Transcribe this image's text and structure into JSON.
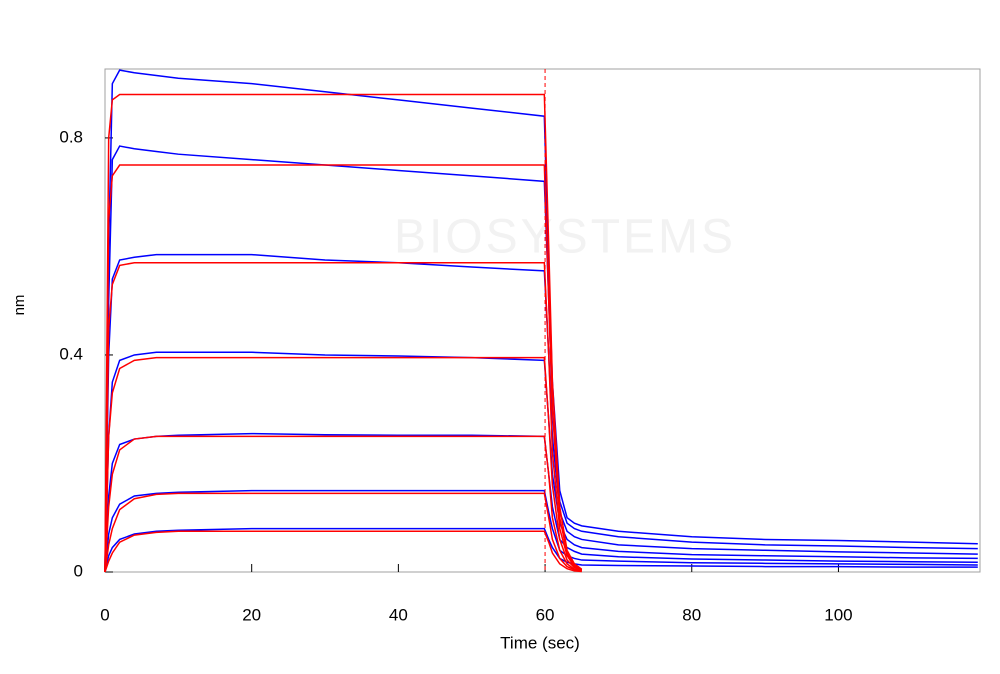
{
  "chart_data": {
    "type": "line",
    "xlabel": "Time (sec)",
    "ylabel": "nm",
    "watermark": "BIOSYSTEMS",
    "x": [
      0,
      0.5,
      1,
      2,
      4,
      7,
      10,
      20,
      30,
      40,
      50,
      59.9,
      60.5,
      61,
      62,
      63,
      64,
      65,
      70,
      80,
      90,
      100,
      110,
      119
    ],
    "xlim": [
      0,
      119.3
    ],
    "xticks": [
      0,
      20,
      40,
      60,
      80,
      100
    ],
    "ylim": [
      0,
      0.927
    ],
    "yticks": [
      0,
      0.4,
      0.8
    ],
    "vline_x": 60,
    "vline_color": "#ff0000",
    "series": [
      {
        "color": "#0000ff",
        "values": [
          0,
          0.6,
          0.9,
          0.925,
          0.92,
          0.915,
          0.91,
          0.9,
          0.885,
          0.87,
          0.855,
          0.84,
          0.55,
          0.35,
          0.15,
          0.1,
          0.09,
          0.085,
          0.075,
          0.065,
          0.06,
          0.058,
          0.055,
          0.052
        ]
      },
      {
        "color": "#0000ff",
        "values": [
          0,
          0.5,
          0.76,
          0.785,
          0.78,
          0.775,
          0.77,
          0.76,
          0.75,
          0.74,
          0.73,
          0.72,
          0.5,
          0.3,
          0.13,
          0.09,
          0.08,
          0.075,
          0.065,
          0.055,
          0.05,
          0.048,
          0.045,
          0.043
        ]
      },
      {
        "color": "#0000ff",
        "values": [
          0,
          0.4,
          0.54,
          0.575,
          0.58,
          0.585,
          0.585,
          0.585,
          0.575,
          0.57,
          0.562,
          0.555,
          0.4,
          0.25,
          0.11,
          0.075,
          0.065,
          0.06,
          0.05,
          0.043,
          0.04,
          0.037,
          0.035,
          0.033
        ]
      },
      {
        "color": "#0000ff",
        "values": [
          0,
          0.25,
          0.35,
          0.39,
          0.4,
          0.405,
          0.405,
          0.405,
          0.4,
          0.398,
          0.395,
          0.39,
          0.28,
          0.18,
          0.09,
          0.06,
          0.05,
          0.045,
          0.038,
          0.032,
          0.03,
          0.028,
          0.026,
          0.025
        ]
      },
      {
        "color": "#0000ff",
        "values": [
          0,
          0.14,
          0.2,
          0.235,
          0.245,
          0.25,
          0.252,
          0.255,
          0.253,
          0.252,
          0.252,
          0.25,
          0.18,
          0.12,
          0.06,
          0.045,
          0.038,
          0.033,
          0.028,
          0.024,
          0.022,
          0.02,
          0.019,
          0.018
        ]
      },
      {
        "color": "#0000ff",
        "values": [
          0,
          0.07,
          0.1,
          0.125,
          0.14,
          0.145,
          0.147,
          0.15,
          0.15,
          0.15,
          0.15,
          0.15,
          0.11,
          0.08,
          0.04,
          0.03,
          0.025,
          0.022,
          0.02,
          0.017,
          0.016,
          0.015,
          0.014,
          0.013
        ]
      },
      {
        "color": "#0000ff",
        "values": [
          0,
          0.03,
          0.045,
          0.06,
          0.07,
          0.075,
          0.077,
          0.08,
          0.08,
          0.08,
          0.08,
          0.08,
          0.06,
          0.045,
          0.025,
          0.018,
          0.015,
          0.013,
          0.012,
          0.011,
          0.01,
          0.01,
          0.009,
          0.009
        ]
      },
      {
        "color": "#ff0000",
        "values": [
          0,
          0.8,
          0.87,
          0.88,
          0.88,
          0.88,
          0.88,
          0.88,
          0.88,
          0.88,
          0.88,
          0.88,
          0.6,
          0.35,
          0.12,
          0.04,
          0.015,
          0.005,
          null,
          null,
          null,
          null,
          null,
          null
        ]
      },
      {
        "color": "#ff0000",
        "values": [
          0,
          0.65,
          0.73,
          0.75,
          0.75,
          0.75,
          0.75,
          0.75,
          0.75,
          0.75,
          0.75,
          0.75,
          0.5,
          0.3,
          0.1,
          0.035,
          0.012,
          0.004,
          null,
          null,
          null,
          null,
          null,
          null
        ]
      },
      {
        "color": "#ff0000",
        "values": [
          0,
          0.45,
          0.53,
          0.565,
          0.57,
          0.57,
          0.57,
          0.57,
          0.57,
          0.57,
          0.57,
          0.57,
          0.4,
          0.22,
          0.08,
          0.03,
          0.01,
          0.003,
          null,
          null,
          null,
          null,
          null,
          null
        ]
      },
      {
        "color": "#ff0000",
        "values": [
          0,
          0.25,
          0.33,
          0.375,
          0.39,
          0.395,
          0.395,
          0.395,
          0.395,
          0.395,
          0.395,
          0.395,
          0.28,
          0.16,
          0.06,
          0.022,
          0.008,
          0.002,
          null,
          null,
          null,
          null,
          null,
          null
        ]
      },
      {
        "color": "#ff0000",
        "values": [
          0,
          0.12,
          0.18,
          0.225,
          0.245,
          0.25,
          0.25,
          0.25,
          0.25,
          0.25,
          0.25,
          0.25,
          0.18,
          0.1,
          0.04,
          0.015,
          0.005,
          0.002,
          null,
          null,
          null,
          null,
          null,
          null
        ]
      },
      {
        "color": "#ff0000",
        "values": [
          0,
          0.05,
          0.08,
          0.115,
          0.135,
          0.143,
          0.145,
          0.145,
          0.145,
          0.145,
          0.145,
          0.145,
          0.1,
          0.06,
          0.025,
          0.01,
          0.004,
          0.001,
          null,
          null,
          null,
          null,
          null,
          null
        ]
      },
      {
        "color": "#ff0000",
        "values": [
          0,
          0.02,
          0.035,
          0.055,
          0.068,
          0.073,
          0.075,
          0.075,
          0.075,
          0.075,
          0.075,
          0.075,
          0.055,
          0.035,
          0.015,
          0.006,
          0.002,
          0.001,
          null,
          null,
          null,
          null,
          null,
          null
        ]
      }
    ]
  }
}
